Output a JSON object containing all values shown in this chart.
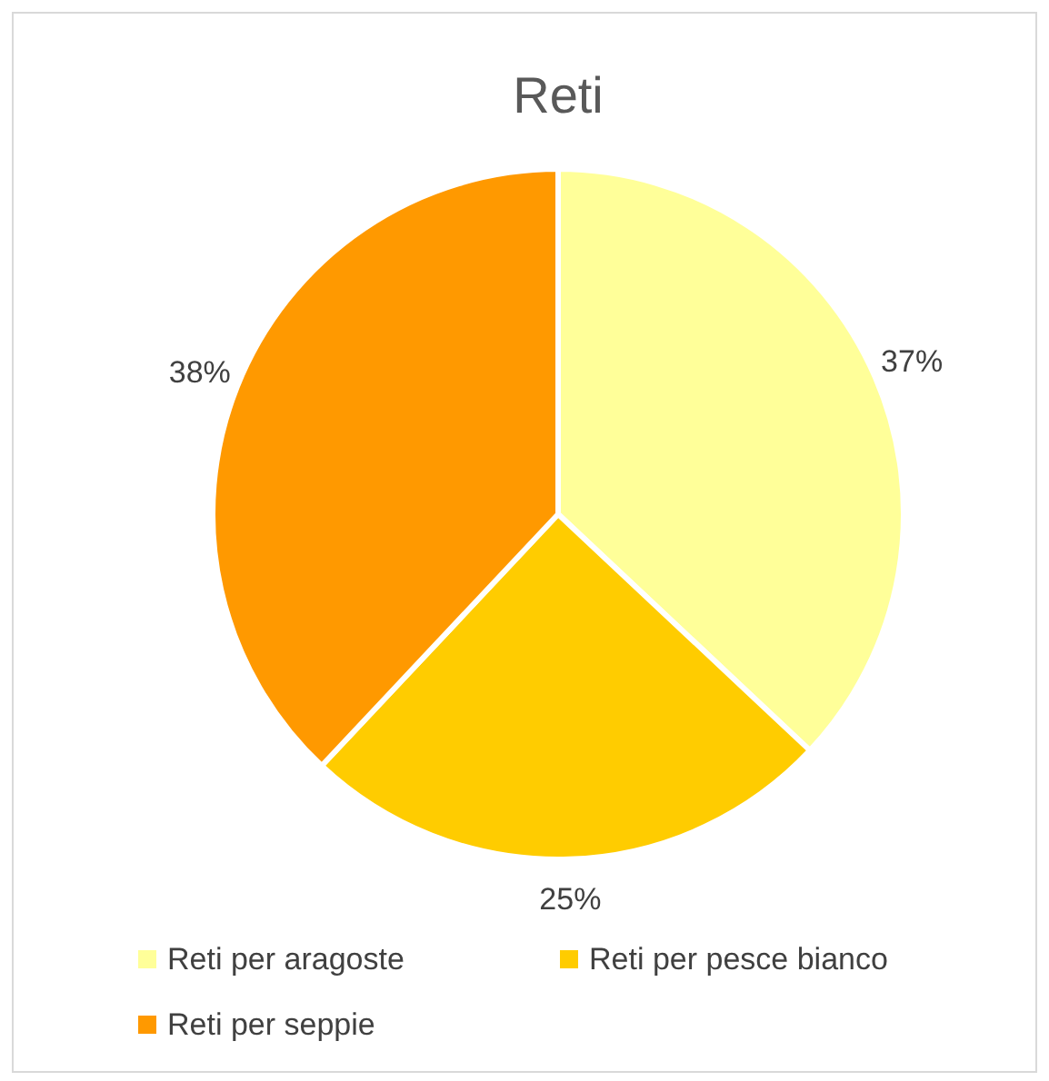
{
  "chart_data": {
    "type": "pie",
    "title": "Reti",
    "categories": [
      "Reti per aragoste",
      "Reti per pesce bianco",
      "Reti per seppie"
    ],
    "values": [
      37,
      25,
      38
    ],
    "colors": [
      "#ffff99",
      "#ffcc00",
      "#ff9900"
    ],
    "value_labels": [
      "37%",
      "25%",
      "38%"
    ],
    "legend": "bottom"
  }
}
